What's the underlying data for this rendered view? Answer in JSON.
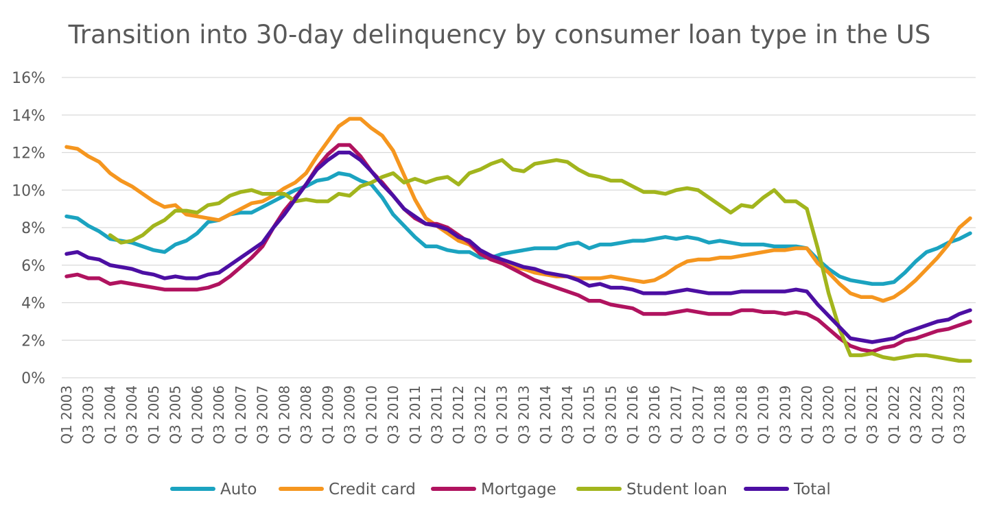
{
  "chart_data": {
    "type": "line",
    "title": "Transition into 30-day delinquency by consumer loan type in the US",
    "xlabel": "",
    "ylabel": "",
    "ylim": [
      0,
      16
    ],
    "yticks": [
      "0%",
      "2%",
      "4%",
      "6%",
      "8%",
      "10%",
      "12%",
      "14%",
      "16%"
    ],
    "grid": true,
    "legend_position": "bottom",
    "x": [
      "Q1 2003",
      "Q2 2003",
      "Q3 2003",
      "Q4 2003",
      "Q1 2004",
      "Q2 2004",
      "Q3 2004",
      "Q4 2004",
      "Q1 2005",
      "Q2 2005",
      "Q3 2005",
      "Q4 2005",
      "Q1 2006",
      "Q2 2006",
      "Q3 2006",
      "Q4 2006",
      "Q1 2007",
      "Q2 2007",
      "Q3 2007",
      "Q4 2007",
      "Q1 2008",
      "Q2 2008",
      "Q3 2008",
      "Q4 2008",
      "Q1 2009",
      "Q2 2009",
      "Q3 2009",
      "Q4 2009",
      "Q1 2010",
      "Q2 2010",
      "Q3 2010",
      "Q4 2010",
      "Q1 2011",
      "Q2 2011",
      "Q3 2011",
      "Q4 2011",
      "Q1 2012",
      "Q2 2012",
      "Q3 2012",
      "Q4 2012",
      "Q1 2013",
      "Q2 2013",
      "Q3 2013",
      "Q4 2013",
      "Q1 2014",
      "Q2 2014",
      "Q3 2014",
      "Q4 2014",
      "Q1 2015",
      "Q2 2015",
      "Q3 2015",
      "Q4 2015",
      "Q1 2016",
      "Q2 2016",
      "Q3 2016",
      "Q4 2016",
      "Q1 2017",
      "Q2 2017",
      "Q3 2017",
      "Q4 2017",
      "Q1 2018",
      "Q2 2018",
      "Q3 2018",
      "Q4 2018",
      "Q1 2019",
      "Q2 2019",
      "Q3 2019",
      "Q4 2019",
      "Q1 2020",
      "Q2 2020",
      "Q3 2020",
      "Q4 2020",
      "Q1 2021",
      "Q2 2021",
      "Q3 2021",
      "Q4 2021",
      "Q1 2022",
      "Q2 2022",
      "Q3 2022",
      "Q4 2022",
      "Q1 2023",
      "Q2 2023",
      "Q3 2023",
      "Q4 2023"
    ],
    "x_tick_labels": [
      "Q1 2003",
      "Q3 2003",
      "Q1 2004",
      "Q3 2004",
      "Q1 2005",
      "Q3 2005",
      "Q1 2006",
      "Q3 2006",
      "Q1 2007",
      "Q3 2007",
      "Q1 2008",
      "Q3 2008",
      "Q1 2009",
      "Q3 2009",
      "Q1 2010",
      "Q3 2010",
      "Q1 2011",
      "Q3 2011",
      "Q1 2012",
      "Q3 2012",
      "Q1 2013",
      "Q3 2013",
      "Q1 2014",
      "Q3 2014",
      "Q1 2015",
      "Q3 2015",
      "Q1 2016",
      "Q3 2016",
      "Q1 2017",
      "Q3 2017",
      "Q1 2018",
      "Q3 2018",
      "Q1 2019",
      "Q3 2019",
      "Q1 2020",
      "Q3 2020",
      "Q1 2021",
      "Q3 2021",
      "Q1 2022",
      "Q3 2022",
      "Q1 2023",
      "Q3 2023"
    ],
    "series": [
      {
        "name": "Auto",
        "color": "#1ba3c0",
        "values": [
          8.6,
          8.5,
          8.1,
          7.8,
          7.4,
          7.3,
          7.2,
          7.0,
          6.8,
          6.7,
          7.1,
          7.3,
          7.7,
          8.3,
          8.4,
          8.7,
          8.8,
          8.8,
          9.1,
          9.4,
          9.7,
          10.0,
          10.2,
          10.5,
          10.6,
          10.9,
          10.8,
          10.5,
          10.3,
          9.6,
          8.7,
          8.1,
          7.5,
          7.0,
          7.0,
          6.8,
          6.7,
          6.7,
          6.4,
          6.4,
          6.6,
          6.7,
          6.8,
          6.9,
          6.9,
          6.9,
          7.1,
          7.2,
          6.9,
          7.1,
          7.1,
          7.2,
          7.3,
          7.3,
          7.4,
          7.5,
          7.4,
          7.5,
          7.4,
          7.2,
          7.3,
          7.2,
          7.1,
          7.1,
          7.1,
          7.0,
          7.0,
          7.0,
          6.9,
          6.3,
          5.8,
          5.4,
          5.2,
          5.1,
          5.0,
          5.0,
          5.1,
          5.6,
          6.2,
          6.7,
          6.9,
          7.2,
          7.4,
          7.7
        ]
      },
      {
        "name": "Credit card",
        "color": "#f5961f",
        "values": [
          12.3,
          12.2,
          11.8,
          11.5,
          10.9,
          10.5,
          10.2,
          9.8,
          9.4,
          9.1,
          9.2,
          8.7,
          8.6,
          8.5,
          8.4,
          8.7,
          9.0,
          9.3,
          9.4,
          9.7,
          10.1,
          10.4,
          10.9,
          11.8,
          12.6,
          13.4,
          13.8,
          13.8,
          13.3,
          12.9,
          12.1,
          10.8,
          9.5,
          8.5,
          8.1,
          7.7,
          7.3,
          7.1,
          6.6,
          6.3,
          6.1,
          5.9,
          5.8,
          5.6,
          5.5,
          5.4,
          5.4,
          5.3,
          5.3,
          5.3,
          5.4,
          5.3,
          5.2,
          5.1,
          5.2,
          5.5,
          5.9,
          6.2,
          6.3,
          6.3,
          6.4,
          6.4,
          6.5,
          6.6,
          6.7,
          6.8,
          6.8,
          6.9,
          6.9,
          6.1,
          5.6,
          5.0,
          4.5,
          4.3,
          4.3,
          4.1,
          4.3,
          4.7,
          5.2,
          5.8,
          6.4,
          7.1,
          8.0,
          8.5
        ]
      },
      {
        "name": "Mortgage",
        "color": "#b0135f",
        "values": [
          5.4,
          5.5,
          5.3,
          5.3,
          5.0,
          5.1,
          5.0,
          4.9,
          4.8,
          4.7,
          4.7,
          4.7,
          4.7,
          4.8,
          5.0,
          5.4,
          5.9,
          6.4,
          7.0,
          8.0,
          8.9,
          9.6,
          10.3,
          11.2,
          11.9,
          12.4,
          12.4,
          11.8,
          11.0,
          10.4,
          9.7,
          9.0,
          8.5,
          8.2,
          8.2,
          8.0,
          7.6,
          7.2,
          6.6,
          6.3,
          6.1,
          5.8,
          5.5,
          5.2,
          5.0,
          4.8,
          4.6,
          4.4,
          4.1,
          4.1,
          3.9,
          3.8,
          3.7,
          3.4,
          3.4,
          3.4,
          3.5,
          3.6,
          3.5,
          3.4,
          3.4,
          3.4,
          3.6,
          3.6,
          3.5,
          3.5,
          3.4,
          3.5,
          3.4,
          3.1,
          2.6,
          2.1,
          1.7,
          1.5,
          1.4,
          1.6,
          1.7,
          2.0,
          2.1,
          2.3,
          2.5,
          2.6,
          2.8,
          3.0
        ]
      },
      {
        "name": "Student loan",
        "color": "#a2b51d",
        "values": [
          null,
          null,
          null,
          null,
          7.6,
          7.2,
          7.3,
          7.6,
          8.1,
          8.4,
          8.9,
          8.9,
          8.8,
          9.2,
          9.3,
          9.7,
          9.9,
          10.0,
          9.8,
          9.8,
          9.8,
          9.4,
          9.5,
          9.4,
          9.4,
          9.8,
          9.7,
          10.2,
          10.4,
          10.7,
          10.9,
          10.4,
          10.6,
          10.4,
          10.6,
          10.7,
          10.3,
          10.9,
          11.1,
          11.4,
          11.6,
          11.1,
          11.0,
          11.4,
          11.5,
          11.6,
          11.5,
          11.1,
          10.8,
          10.7,
          10.5,
          10.5,
          10.2,
          9.9,
          9.9,
          9.8,
          10.0,
          10.1,
          10.0,
          9.6,
          9.2,
          8.8,
          9.2,
          9.1,
          9.6,
          10.0,
          9.4,
          9.4,
          9.0,
          6.9,
          4.5,
          2.6,
          1.2,
          1.2,
          1.3,
          1.1,
          1.0,
          1.1,
          1.2,
          1.2,
          1.1,
          1.0,
          0.9,
          0.9
        ]
      },
      {
        "name": "Total",
        "color": "#4c0fa3",
        "values": [
          6.6,
          6.7,
          6.4,
          6.3,
          6.0,
          5.9,
          5.8,
          5.6,
          5.5,
          5.3,
          5.4,
          5.3,
          5.3,
          5.5,
          5.6,
          6.0,
          6.4,
          6.8,
          7.2,
          8.0,
          8.7,
          9.5,
          10.3,
          11.1,
          11.6,
          12.0,
          12.0,
          11.6,
          11.0,
          10.3,
          9.7,
          9.0,
          8.6,
          8.2,
          8.1,
          7.9,
          7.5,
          7.3,
          6.8,
          6.5,
          6.3,
          6.1,
          5.9,
          5.8,
          5.6,
          5.5,
          5.4,
          5.2,
          4.9,
          5.0,
          4.8,
          4.8,
          4.7,
          4.5,
          4.5,
          4.5,
          4.6,
          4.7,
          4.6,
          4.5,
          4.5,
          4.5,
          4.6,
          4.6,
          4.6,
          4.6,
          4.6,
          4.7,
          4.6,
          3.9,
          3.3,
          2.7,
          2.1,
          2.0,
          1.9,
          2.0,
          2.1,
          2.4,
          2.6,
          2.8,
          3.0,
          3.1,
          3.4,
          3.6
        ]
      }
    ]
  }
}
